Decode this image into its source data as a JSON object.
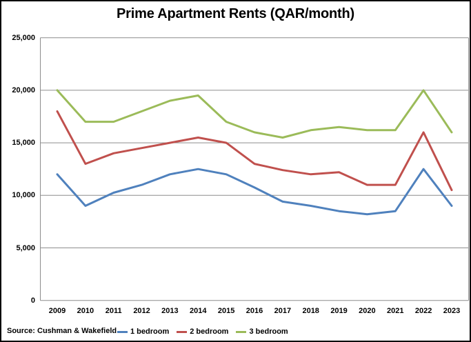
{
  "window": {
    "background": "#ffffff",
    "border_color": "#000000"
  },
  "chart_data": {
    "type": "line",
    "title": "Prime Apartment Rents (QAR/month)",
    "xlabel": "",
    "ylabel": "",
    "ylim": [
      0,
      25000
    ],
    "grid": true,
    "gridline_color": "#8c8c8c",
    "legend_position": "bottom",
    "categories": [
      "2009",
      "2010",
      "2011",
      "2012",
      "2013",
      "2014",
      "2015",
      "2016",
      "2017",
      "2018",
      "2019",
      "2020",
      "2021",
      "2022",
      "2023"
    ],
    "yticks": [
      {
        "value": 25000,
        "label": "25,000"
      },
      {
        "value": 20000,
        "label": "20,000"
      },
      {
        "value": 15000,
        "label": "15,000"
      },
      {
        "value": 10000,
        "label": "10,000"
      },
      {
        "value": 5000,
        "label": "5,000"
      },
      {
        "value": 0,
        "label": "0"
      }
    ],
    "series": [
      {
        "name": "1 bedroom",
        "color": "#4F81BD",
        "values": [
          12000,
          9000,
          10250,
          11000,
          12000,
          12500,
          12000,
          10750,
          9400,
          9000,
          8500,
          8200,
          8500,
          12500,
          9000
        ]
      },
      {
        "name": "2 bedroom",
        "color": "#C0504D",
        "values": [
          18000,
          13000,
          14000,
          14500,
          15000,
          15500,
          15000,
          13000,
          12400,
          12000,
          12200,
          11000,
          11000,
          16000,
          10500
        ]
      },
      {
        "name": "3 bedroom",
        "color": "#9BBB59",
        "values": [
          20000,
          17000,
          17000,
          18000,
          19000,
          19500,
          17000,
          16000,
          15500,
          16200,
          16500,
          16200,
          16200,
          20000,
          16000
        ]
      }
    ]
  },
  "footer": {
    "source_label": "Source: Cushman & Wakefield"
  }
}
